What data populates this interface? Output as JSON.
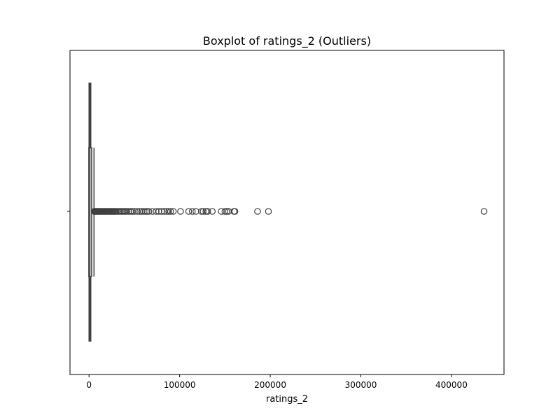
{
  "chart_data": {
    "type": "boxplot",
    "title": "Boxplot of ratings_2 (Outliers)",
    "xlabel": "ratings_2",
    "ylabel": "",
    "xlim": [
      -21000,
      458000
    ],
    "x_ticks": [
      0,
      100000,
      200000,
      300000,
      400000
    ],
    "x_tick_labels": [
      "0",
      "100000",
      "200000",
      "300000",
      "400000"
    ],
    "orientation": "horizontal",
    "grid": false,
    "colors": {
      "box_edge": "#3f3f3f",
      "axes": "#000000",
      "background": "#ffffff"
    },
    "box": {
      "whisker_low": 0,
      "q1": 150,
      "median": 1000,
      "q3": 2500,
      "whisker_high": 5500
    },
    "outliers": [
      5800,
      6200,
      6800,
      7500,
      8200,
      9000,
      9800,
      10500,
      11300,
      12200,
      13000,
      14000,
      15000,
      16000,
      17000,
      18000,
      19000,
      20000,
      21000,
      22000,
      23000,
      24000,
      25000,
      26000,
      27000,
      28000,
      29000,
      30000,
      31500,
      33000,
      34500,
      36000,
      37500,
      39000,
      40500,
      42000,
      44000,
      46000,
      48000,
      50000,
      53000,
      56000,
      58000,
      60000,
      62000,
      64000,
      66000,
      70000,
      74000,
      77000,
      80000,
      83000,
      86000,
      88000,
      90000,
      93000,
      101000,
      110000,
      114000,
      118000,
      124000,
      126000,
      129000,
      131000,
      136000,
      146000,
      150000,
      152000,
      154000,
      160000,
      161000,
      186000,
      198000,
      436000
    ]
  }
}
